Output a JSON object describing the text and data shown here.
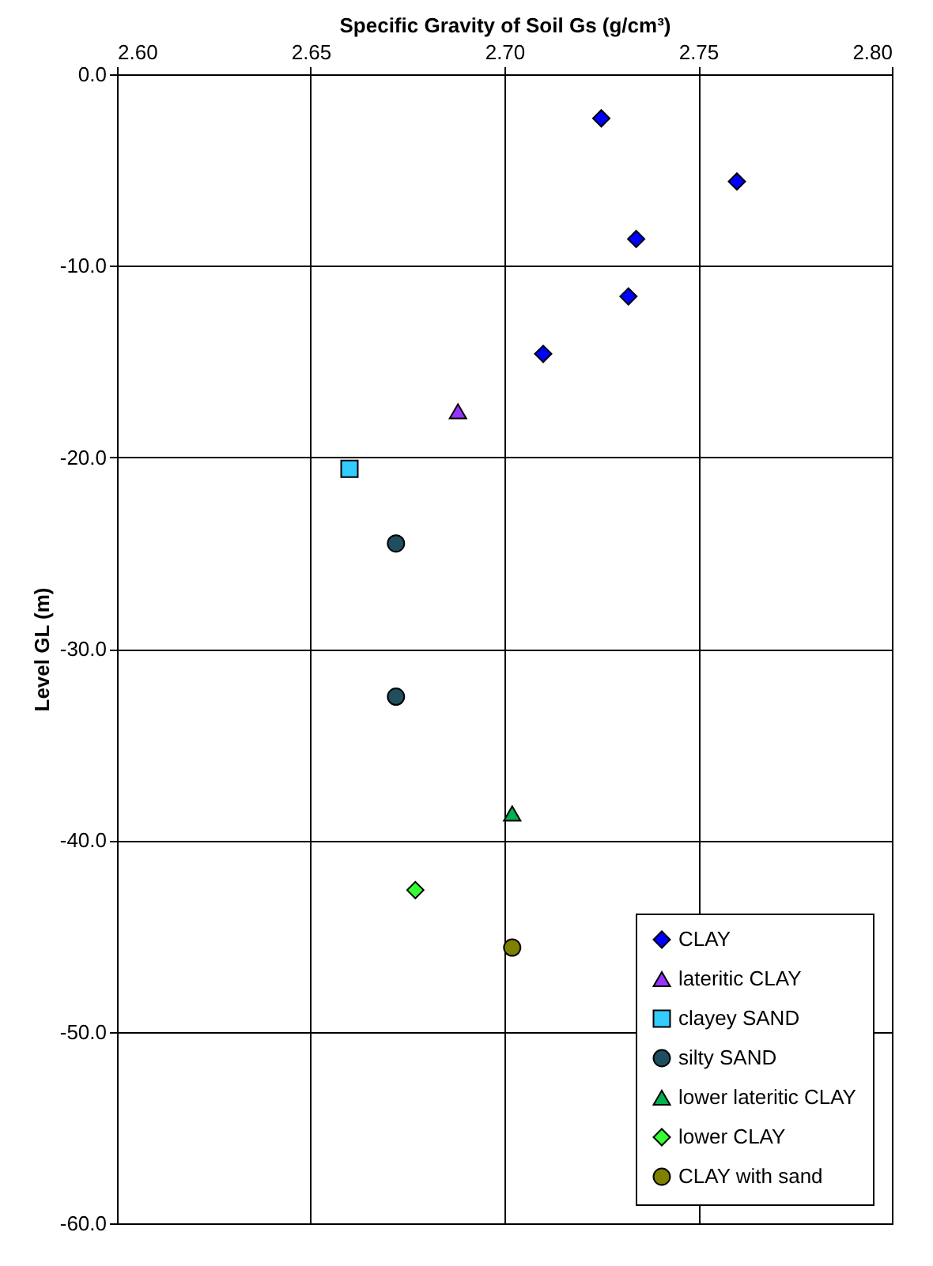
{
  "chart_data": {
    "type": "scatter",
    "xlabel": "Specific Gravity of Soil  Gs (g/cm³)",
    "ylabel": "Level GL (m)",
    "xlim": [
      2.6,
      2.8
    ],
    "ylim": [
      -60,
      0
    ],
    "xticks": [
      {
        "value": 2.6,
        "label": "2.60"
      },
      {
        "value": 2.65,
        "label": "2.65"
      },
      {
        "value": 2.7,
        "label": "2.70"
      },
      {
        "value": 2.75,
        "label": "2.75"
      },
      {
        "value": 2.8,
        "label": "2.80"
      }
    ],
    "yticks": [
      {
        "value": 0,
        "label": "0.0"
      },
      {
        "value": -10,
        "label": "-10.0"
      },
      {
        "value": -20,
        "label": "-20.0"
      },
      {
        "value": -30,
        "label": "-30.0"
      },
      {
        "value": -40,
        "label": "-40.0"
      },
      {
        "value": -50,
        "label": "-50.0"
      },
      {
        "value": -60,
        "label": "-60.0"
      }
    ],
    "grid": true,
    "legend": "bottom right",
    "series": [
      {
        "name": "CLAY",
        "color": "#0000ff",
        "marker": "diamond",
        "x": [
          2.725,
          2.76,
          2.734,
          2.732,
          2.71
        ],
        "values": [
          -2.3,
          -5.6,
          -8.6,
          -11.6,
          -14.6
        ]
      },
      {
        "name": "lateritic CLAY",
        "color": "#9933ff",
        "marker": "triangle",
        "x": [
          2.688
        ],
        "values": [
          -17.6
        ]
      },
      {
        "name": "clayey SAND",
        "color": "#33ccff",
        "marker": "square",
        "x": [
          2.66
        ],
        "values": [
          -20.6
        ]
      },
      {
        "name": "silty SAND",
        "color": "#1f4e5f",
        "marker": "circle",
        "x": [
          2.672,
          2.672
        ],
        "values": [
          -24.5,
          -32.5
        ]
      },
      {
        "name": "lower lateritic CLAY",
        "color": "#00b050",
        "marker": "triangle",
        "x": [
          2.702
        ],
        "values": [
          -38.6
        ]
      },
      {
        "name": "lower CLAY",
        "color": "#33ff33",
        "marker": "diamond",
        "x": [
          2.677
        ],
        "values": [
          -42.6
        ]
      },
      {
        "name": "CLAY with sand",
        "color": "#808000",
        "marker": "circle",
        "x": [
          2.702
        ],
        "values": [
          -45.6
        ]
      }
    ]
  }
}
